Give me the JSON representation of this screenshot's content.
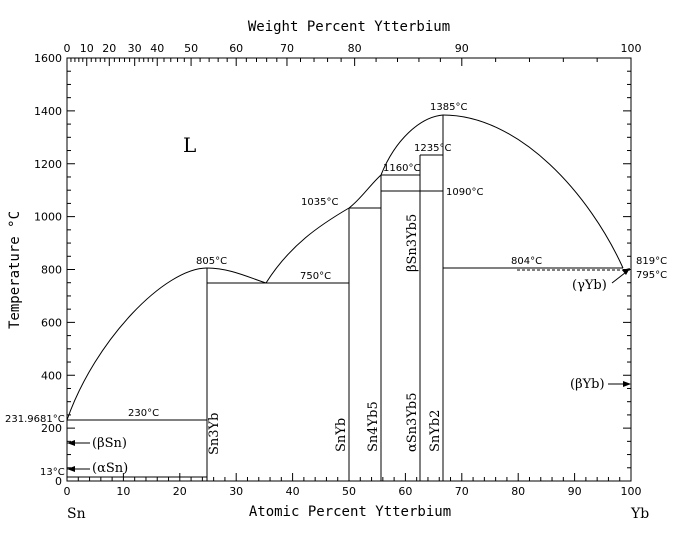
{
  "diagram": {
    "top_axis_title": "Weight Percent Ytterbium",
    "bottom_axis_title": "Atomic Percent Ytterbium",
    "y_axis_title": "Temperature °C",
    "element_left": "Sn",
    "element_right": "Yb",
    "x_ticks": [
      "0",
      "10",
      "20",
      "30",
      "40",
      "50",
      "60",
      "70",
      "80",
      "90",
      "100"
    ],
    "y_ticks": [
      "0",
      "200",
      "400",
      "600",
      "800",
      "1000",
      "1200",
      "1400",
      "1600"
    ],
    "top_ticks": [
      "0",
      "10",
      "20",
      "30",
      "40",
      "50",
      "60",
      "70",
      "80",
      "90",
      "100"
    ],
    "top_tick_positions_at_pct": [
      0,
      3.5,
      7.5,
      12,
      16,
      22,
      30,
      39,
      51,
      70,
      100
    ],
    "liquid_label": "L",
    "temperatures": {
      "t_sn_melt": "231.9681°C",
      "t_eutectic_sn": "230°C",
      "t_alpha_beta_sn": "13°C",
      "t_sn3yb": "805°C",
      "t_eutectic_750": "750°C",
      "t_snyb": "1035°C",
      "t_1160": "1160°C",
      "t_1235": "1235°C",
      "t_max": "1385°C",
      "t_1090": "1090°C",
      "t_804": "804°C",
      "t_819": "819°C",
      "t_795": "795°C"
    },
    "phases": {
      "beta_sn": "(βSn)",
      "alpha_sn": "(αSn)",
      "sn3yb": "Sn3Yb",
      "snyb": "SnYb",
      "sn4yb5": "Sn4Yb5",
      "alpha_sn3yb5": "αSn3Yb5",
      "beta_sn3yb5": "βSn3Yb5",
      "snyb2": "SnYb2",
      "gamma_yb": "(γYb)",
      "beta_yb": "(βYb)"
    }
  },
  "chart_data": {
    "type": "phase-diagram",
    "x_range_at_pct": [
      0,
      100
    ],
    "y_range_celsius": [
      0,
      1600
    ],
    "invariant_points": [
      {
        "label": "231.9681°C",
        "x": 0,
        "y": 231.97
      },
      {
        "label": "230°C",
        "x": 0.5,
        "y": 230
      },
      {
        "label": "13°C",
        "x": 0,
        "y": 13
      },
      {
        "label": "805°C",
        "x": 25,
        "y": 805
      },
      {
        "label": "750°C",
        "x": 35,
        "y": 750
      },
      {
        "label": "1035°C",
        "x": 50,
        "y": 1035
      },
      {
        "label": "1160°C",
        "x": 55.5,
        "y": 1160
      },
      {
        "label": "1235°C",
        "x": 62.5,
        "y": 1235
      },
      {
        "label": "1385°C",
        "x": 66.7,
        "y": 1385
      },
      {
        "label": "1090°C",
        "x": 62.5,
        "y": 1090
      },
      {
        "label": "804°C",
        "x": 66.7,
        "y": 804
      },
      {
        "label": "819°C",
        "x": 100,
        "y": 819
      },
      {
        "label": "795°C",
        "x": 100,
        "y": 795
      }
    ],
    "compounds": [
      {
        "name": "Sn3Yb",
        "x": 25
      },
      {
        "name": "SnYb",
        "x": 50
      },
      {
        "name": "Sn4Yb5",
        "x": 55.5
      },
      {
        "name": "αSn3Yb5",
        "x": 62.5
      },
      {
        "name": "βSn3Yb5",
        "x": 62.5
      },
      {
        "name": "SnYb2",
        "x": 66.7
      }
    ]
  }
}
